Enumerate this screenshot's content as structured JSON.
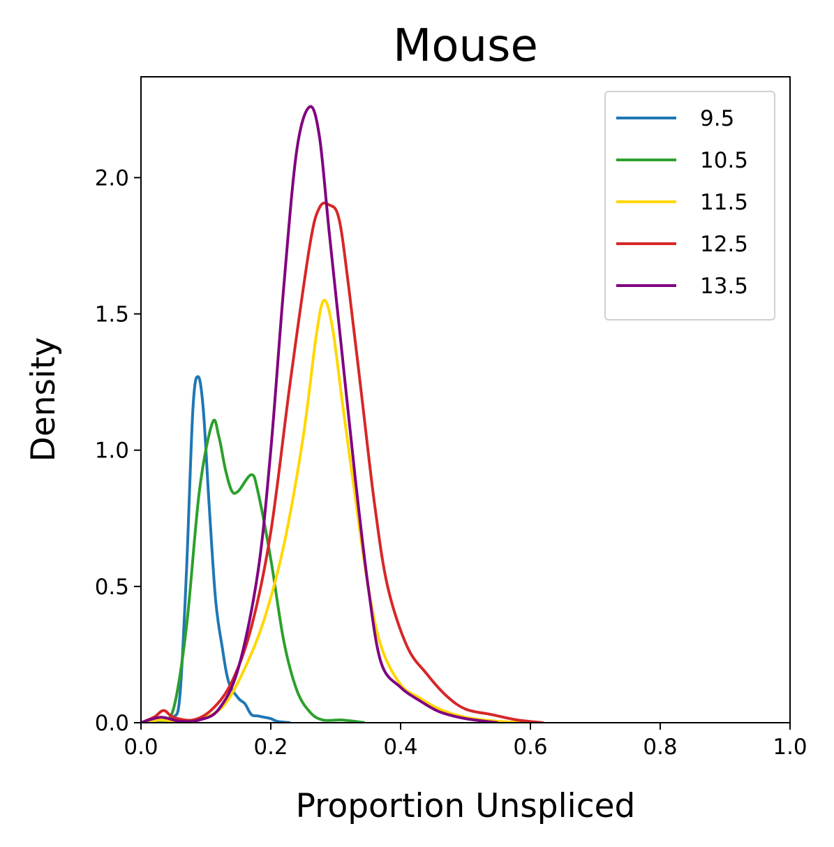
{
  "chart_data": {
    "type": "line",
    "title": "Mouse",
    "xlabel": "Proportion Unspliced",
    "ylabel": "Density",
    "xlim": [
      0.0,
      1.0
    ],
    "ylim": [
      0.0,
      2.37
    ],
    "xticks": [
      "0.0",
      "0.2",
      "0.4",
      "0.6",
      "0.8",
      "1.0"
    ],
    "yticks": [
      "0.0",
      "0.5",
      "1.0",
      "1.5",
      "2.0"
    ],
    "grid": false,
    "legend_position": "top-right",
    "series": [
      {
        "name": "9.5",
        "color": "#1f77b4",
        "points": [
          [
            0.0,
            0.0
          ],
          [
            0.03,
            0.005
          ],
          [
            0.05,
            0.02
          ],
          [
            0.06,
            0.1
          ],
          [
            0.07,
            0.55
          ],
          [
            0.08,
            1.15
          ],
          [
            0.088,
            1.27
          ],
          [
            0.096,
            1.15
          ],
          [
            0.105,
            0.8
          ],
          [
            0.115,
            0.45
          ],
          [
            0.125,
            0.28
          ],
          [
            0.135,
            0.15
          ],
          [
            0.15,
            0.09
          ],
          [
            0.16,
            0.07
          ],
          [
            0.17,
            0.03
          ],
          [
            0.18,
            0.025
          ],
          [
            0.19,
            0.02
          ],
          [
            0.2,
            0.015
          ],
          [
            0.21,
            0.005
          ],
          [
            0.23,
            0.0
          ]
        ]
      },
      {
        "name": "10.5",
        "color": "#2ca02c",
        "points": [
          [
            0.03,
            0.0
          ],
          [
            0.05,
            0.05
          ],
          [
            0.07,
            0.35
          ],
          [
            0.09,
            0.85
          ],
          [
            0.11,
            1.1
          ],
          [
            0.12,
            1.05
          ],
          [
            0.13,
            0.93
          ],
          [
            0.14,
            0.85
          ],
          [
            0.15,
            0.85
          ],
          [
            0.17,
            0.91
          ],
          [
            0.18,
            0.85
          ],
          [
            0.2,
            0.6
          ],
          [
            0.22,
            0.3
          ],
          [
            0.24,
            0.12
          ],
          [
            0.26,
            0.04
          ],
          [
            0.28,
            0.01
          ],
          [
            0.31,
            0.01
          ],
          [
            0.345,
            0.0
          ]
        ]
      },
      {
        "name": "11.5",
        "color": "#ffd700",
        "points": [
          [
            0.0,
            0.0
          ],
          [
            0.03,
            0.01
          ],
          [
            0.06,
            0.005
          ],
          [
            0.1,
            0.02
          ],
          [
            0.13,
            0.07
          ],
          [
            0.16,
            0.2
          ],
          [
            0.19,
            0.38
          ],
          [
            0.22,
            0.65
          ],
          [
            0.25,
            1.05
          ],
          [
            0.27,
            1.42
          ],
          [
            0.282,
            1.55
          ],
          [
            0.295,
            1.45
          ],
          [
            0.31,
            1.18
          ],
          [
            0.33,
            0.83
          ],
          [
            0.35,
            0.5
          ],
          [
            0.37,
            0.28
          ],
          [
            0.4,
            0.14
          ],
          [
            0.43,
            0.09
          ],
          [
            0.46,
            0.05
          ],
          [
            0.5,
            0.02
          ],
          [
            0.55,
            0.005
          ],
          [
            0.6,
            0.0
          ]
        ]
      },
      {
        "name": "12.5",
        "color": "#d62728",
        "points": [
          [
            0.0,
            0.0
          ],
          [
            0.02,
            0.02
          ],
          [
            0.035,
            0.045
          ],
          [
            0.05,
            0.02
          ],
          [
            0.08,
            0.01
          ],
          [
            0.11,
            0.05
          ],
          [
            0.14,
            0.15
          ],
          [
            0.17,
            0.35
          ],
          [
            0.2,
            0.7
          ],
          [
            0.23,
            1.25
          ],
          [
            0.26,
            1.75
          ],
          [
            0.275,
            1.89
          ],
          [
            0.29,
            1.9
          ],
          [
            0.305,
            1.85
          ],
          [
            0.32,
            1.6
          ],
          [
            0.34,
            1.2
          ],
          [
            0.36,
            0.8
          ],
          [
            0.38,
            0.5
          ],
          [
            0.41,
            0.28
          ],
          [
            0.44,
            0.18
          ],
          [
            0.47,
            0.1
          ],
          [
            0.5,
            0.05
          ],
          [
            0.54,
            0.03
          ],
          [
            0.58,
            0.01
          ],
          [
            0.62,
            0.0
          ]
        ]
      },
      {
        "name": "13.5",
        "color": "#800080",
        "points": [
          [
            0.0,
            0.0
          ],
          [
            0.03,
            0.02
          ],
          [
            0.06,
            0.005
          ],
          [
            0.09,
            0.01
          ],
          [
            0.12,
            0.05
          ],
          [
            0.15,
            0.2
          ],
          [
            0.18,
            0.55
          ],
          [
            0.2,
            1.0
          ],
          [
            0.22,
            1.6
          ],
          [
            0.24,
            2.1
          ],
          [
            0.26,
            2.26
          ],
          [
            0.275,
            2.15
          ],
          [
            0.29,
            1.8
          ],
          [
            0.31,
            1.35
          ],
          [
            0.33,
            0.9
          ],
          [
            0.35,
            0.5
          ],
          [
            0.37,
            0.22
          ],
          [
            0.4,
            0.13
          ],
          [
            0.43,
            0.08
          ],
          [
            0.46,
            0.04
          ],
          [
            0.5,
            0.015
          ],
          [
            0.55,
            0.0
          ]
        ]
      }
    ]
  }
}
